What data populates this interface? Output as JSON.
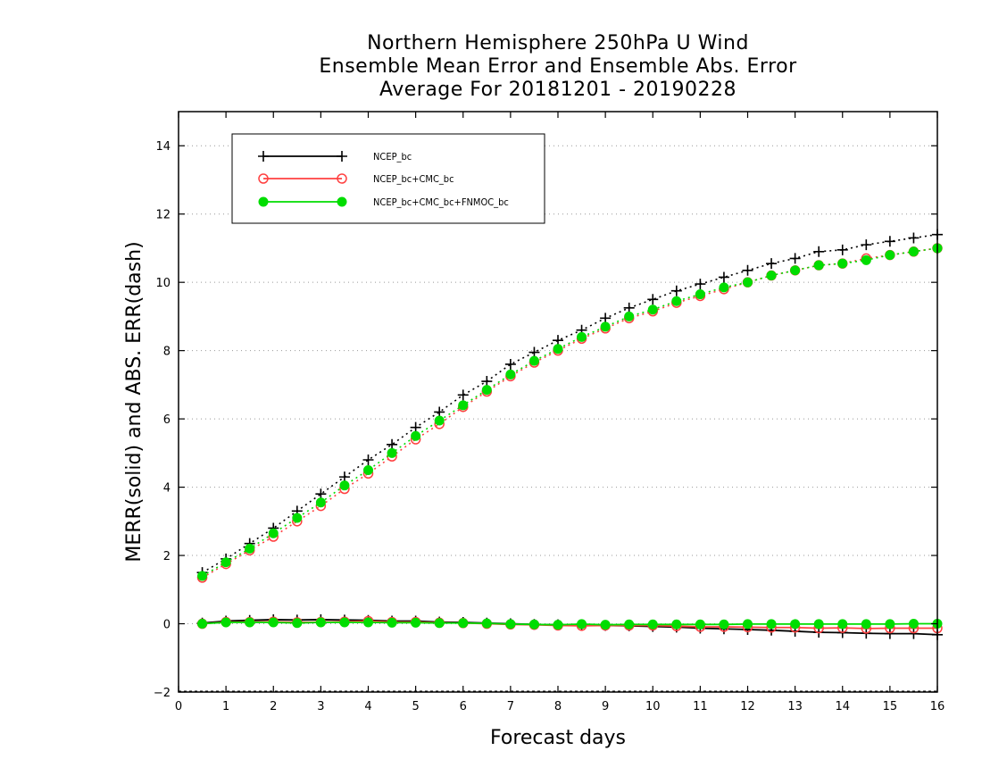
{
  "chart_data": {
    "type": "line",
    "title": [
      "Northern Hemisphere 250hPa U Wind",
      "Ensemble Mean Error and Ensemble Abs. Error",
      "Average For 20181201 - 20190228"
    ],
    "xlabel": "Forecast days",
    "ylabel": "MERR(solid) and ABS. ERR(dash)",
    "xlim": [
      0,
      16
    ],
    "ylim": [
      -2,
      15
    ],
    "xticks": [
      0,
      1,
      2,
      3,
      4,
      5,
      6,
      7,
      8,
      9,
      10,
      11,
      12,
      13,
      14,
      15,
      16
    ],
    "yticks": [
      -2,
      0,
      2,
      4,
      6,
      8,
      10,
      12,
      14
    ],
    "grid": "horizontal dotted",
    "legend_position": "top-left",
    "x": [
      0.5,
      1.0,
      1.5,
      2.0,
      2.5,
      3.0,
      3.5,
      4.0,
      4.5,
      5.0,
      5.5,
      6.0,
      6.5,
      7.0,
      7.5,
      8.0,
      8.5,
      9.0,
      9.5,
      10.0,
      10.5,
      11.0,
      11.5,
      12.0,
      12.5,
      13.0,
      13.5,
      14.0,
      14.5,
      15.0,
      15.5,
      16.0
    ],
    "series": [
      {
        "name": "NCEP_bc",
        "color": "#000000",
        "marker": "plus",
        "abs_err": [
          1.5,
          1.9,
          2.35,
          2.8,
          3.3,
          3.8,
          4.3,
          4.8,
          5.25,
          5.75,
          6.2,
          6.7,
          7.1,
          7.6,
          7.95,
          8.3,
          8.6,
          8.95,
          9.25,
          9.5,
          9.75,
          9.95,
          10.15,
          10.35,
          10.55,
          10.7,
          10.9,
          10.95,
          11.1,
          11.2,
          11.3,
          11.4
        ],
        "mean_err": [
          0.02,
          0.08,
          0.1,
          0.12,
          0.11,
          0.12,
          0.11,
          0.1,
          0.08,
          0.08,
          0.05,
          0.04,
          0.02,
          0.0,
          -0.02,
          -0.03,
          -0.04,
          -0.05,
          -0.06,
          -0.08,
          -0.1,
          -0.13,
          -0.15,
          -0.17,
          -0.19,
          -0.22,
          -0.25,
          -0.26,
          -0.28,
          -0.29,
          -0.29,
          -0.32
        ]
      },
      {
        "name": "NCEP_bc+CMC_bc",
        "color": "#ff4040",
        "marker": "open-circle",
        "abs_err": [
          1.35,
          1.75,
          2.15,
          2.55,
          3.0,
          3.45,
          3.95,
          4.4,
          4.9,
          5.4,
          5.85,
          6.35,
          6.8,
          7.25,
          7.65,
          8.0,
          8.35,
          8.65,
          8.95,
          9.15,
          9.4,
          9.6,
          9.8,
          10.0,
          10.2,
          10.35,
          10.5,
          10.55,
          10.7,
          10.8,
          10.9,
          11.0
        ],
        "mean_err": [
          0.0,
          0.05,
          0.05,
          0.06,
          0.04,
          0.05,
          0.06,
          0.08,
          0.05,
          0.05,
          0.03,
          0.02,
          0.0,
          -0.02,
          -0.03,
          -0.05,
          -0.06,
          -0.05,
          -0.05,
          -0.05,
          -0.07,
          -0.09,
          -0.09,
          -0.1,
          -0.11,
          -0.11,
          -0.13,
          -0.12,
          -0.14,
          -0.13,
          -0.13,
          -0.13
        ]
      },
      {
        "name": "NCEP_bc+CMC_bc+FNMOC_bc",
        "color": "#00dd00",
        "marker": "filled-circle",
        "abs_err": [
          1.4,
          1.8,
          2.2,
          2.65,
          3.1,
          3.55,
          4.05,
          4.5,
          5.0,
          5.5,
          5.95,
          6.4,
          6.85,
          7.3,
          7.7,
          8.05,
          8.4,
          8.7,
          9.0,
          9.2,
          9.45,
          9.65,
          9.85,
          10.0,
          10.2,
          10.35,
          10.5,
          10.55,
          10.65,
          10.8,
          10.9,
          11.0
        ],
        "mean_err": [
          0.0,
          0.04,
          0.04,
          0.04,
          0.02,
          0.04,
          0.04,
          0.04,
          0.03,
          0.03,
          0.02,
          0.02,
          0.01,
          -0.01,
          -0.02,
          -0.03,
          -0.01,
          -0.03,
          -0.02,
          -0.02,
          -0.02,
          -0.02,
          -0.02,
          -0.01,
          -0.01,
          -0.01,
          -0.01,
          -0.01,
          -0.01,
          -0.01,
          0.0,
          0.0
        ]
      }
    ]
  }
}
